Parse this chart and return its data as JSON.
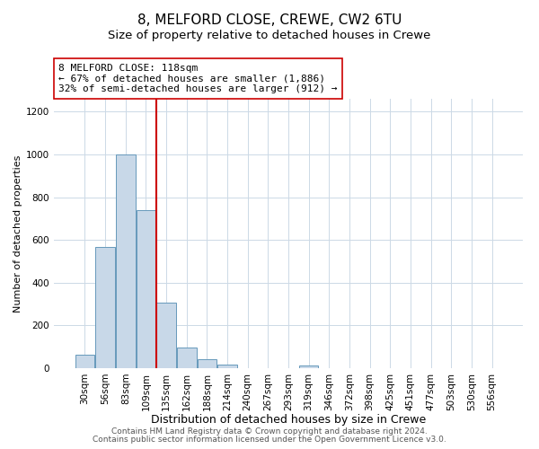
{
  "title": "8, MELFORD CLOSE, CREWE, CW2 6TU",
  "subtitle": "Size of property relative to detached houses in Crewe",
  "xlabel": "Distribution of detached houses by size in Crewe",
  "ylabel": "Number of detached properties",
  "bar_labels": [
    "30sqm",
    "56sqm",
    "83sqm",
    "109sqm",
    "135sqm",
    "162sqm",
    "188sqm",
    "214sqm",
    "240sqm",
    "267sqm",
    "293sqm",
    "319sqm",
    "346sqm",
    "372sqm",
    "398sqm",
    "425sqm",
    "451sqm",
    "477sqm",
    "503sqm",
    "530sqm",
    "556sqm"
  ],
  "bar_values": [
    65,
    568,
    1000,
    740,
    308,
    95,
    40,
    18,
    0,
    0,
    0,
    12,
    0,
    0,
    0,
    0,
    0,
    0,
    0,
    0,
    0
  ],
  "bar_color": "#c8d8e8",
  "bar_edge_color": "#6699bb",
  "vline_x": 3.5,
  "vline_color": "#cc0000",
  "annotation_line1": "8 MELFORD CLOSE: 118sqm",
  "annotation_line2": "← 67% of detached houses are smaller (1,886)",
  "annotation_line3": "32% of semi-detached houses are larger (912) →",
  "box_edge_color": "#cc0000",
  "ylim": [
    0,
    1260
  ],
  "yticks": [
    0,
    200,
    400,
    600,
    800,
    1000,
    1200
  ],
  "footer_line1": "Contains HM Land Registry data © Crown copyright and database right 2024.",
  "footer_line2": "Contains public sector information licensed under the Open Government Licence v3.0.",
  "title_fontsize": 11,
  "subtitle_fontsize": 9.5,
  "xlabel_fontsize": 9,
  "ylabel_fontsize": 8,
  "annotation_fontsize": 8,
  "tick_fontsize": 7.5,
  "footer_fontsize": 6.5,
  "bg_color": "#ffffff",
  "grid_color": "#ccd9e6"
}
